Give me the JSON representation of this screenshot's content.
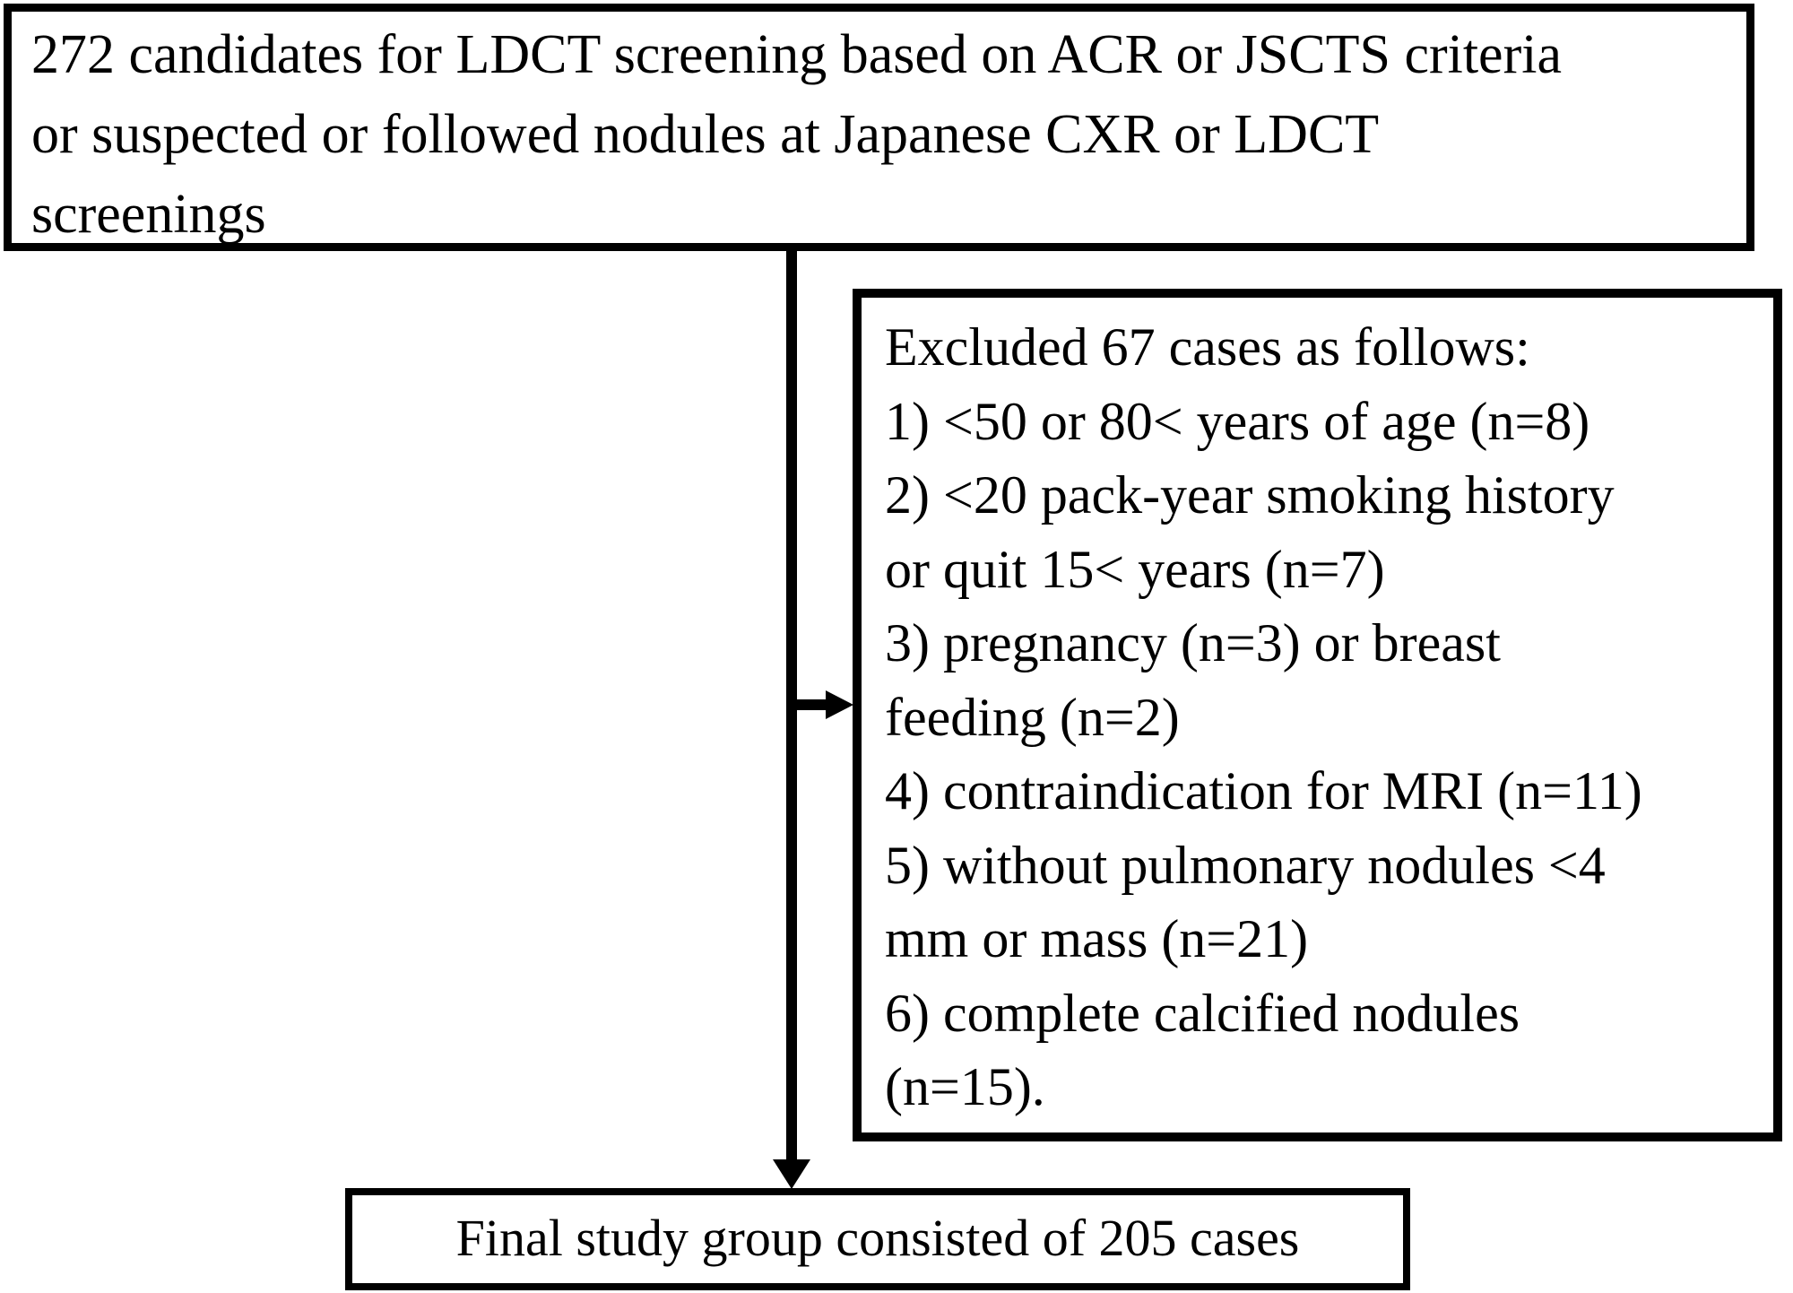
{
  "colors": {
    "background": "#ffffff",
    "line": "#000000",
    "text": "#000000"
  },
  "nodes": {
    "candidates": {
      "lines": [
        "272 candidates for LDCT screening based on ACR or JSCTS criteria",
        "or suspected or followed nodules at Japanese CXR or LDCT",
        "screenings"
      ]
    },
    "excluded": {
      "lines": [
        "Excluded 67 cases as follows:",
        "1) <50 or 80< years of age (n=8)",
        "2) <20 pack-year smoking history",
        "or quit 15< years (n=7)",
        "3) pregnancy (n=3) or breast",
        "feeding (n=2)",
        "4) contraindication for MRI (n=11)",
        "5) without pulmonary nodules <4",
        "mm or mass (n=21)",
        "6) complete calcified nodules",
        "(n=15)."
      ]
    },
    "final": {
      "text": "Final study group consisted of 205 cases"
    }
  },
  "connectors": [
    {
      "from": "candidates",
      "to": "final",
      "type": "arrow-down"
    },
    {
      "from": "candidates",
      "to": "excluded",
      "type": "arrow-right"
    }
  ]
}
